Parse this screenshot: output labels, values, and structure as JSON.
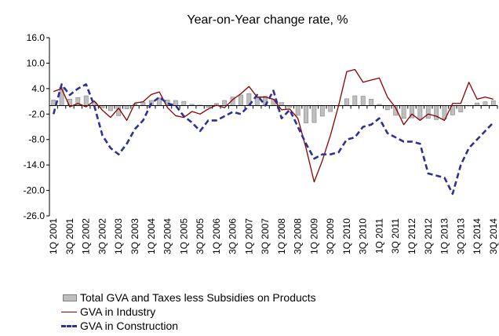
{
  "chart_data": {
    "type": "bar+line",
    "title": "Year-on-Year change rate, %",
    "xlabel": "",
    "ylabel": "",
    "ylim": [
      -26,
      16
    ],
    "yticks": [
      "16.0",
      "10.0",
      "4.0",
      "-2.0",
      "-8.0",
      "-14.0",
      "-20.0",
      "-26.0"
    ],
    "x_tick_labels": [
      "1Q 2001",
      "3Q 2001",
      "1Q 2002",
      "3Q 2002",
      "1Q 2003",
      "3Q 2003",
      "1Q 2004",
      "3Q 2004",
      "1Q 2005",
      "3Q 2005",
      "1Q 2006",
      "3Q 2006",
      "1Q 2007",
      "3Q 2007",
      "1Q 2008",
      "3Q 2008",
      "1Q 2009",
      "3Q 2009",
      "1Q 2010",
      "3Q 2010",
      "1Q 2011",
      "3Q 2011",
      "1Q 2012",
      "3Q 2012",
      "1Q 2013",
      "3Q 2013",
      "1Q 2014",
      "3Q 2014"
    ],
    "categories": [
      "1Q 2001",
      "2Q 2001",
      "3Q 2001",
      "4Q 2001",
      "1Q 2002",
      "2Q 2002",
      "3Q 2002",
      "4Q 2002",
      "1Q 2003",
      "2Q 2003",
      "3Q 2003",
      "4Q 2003",
      "1Q 2004",
      "2Q 2004",
      "3Q 2004",
      "4Q 2004",
      "1Q 2005",
      "2Q 2005",
      "3Q 2005",
      "4Q 2005",
      "1Q 2006",
      "2Q 2006",
      "3Q 2006",
      "4Q 2006",
      "1Q 2007",
      "2Q 2007",
      "3Q 2007",
      "4Q 2007",
      "1Q 2008",
      "2Q 2008",
      "3Q 2008",
      "4Q 2008",
      "1Q 2009",
      "2Q 2009",
      "3Q 2009",
      "4Q 2009",
      "1Q 2010",
      "2Q 2010",
      "3Q 2010",
      "4Q 2010",
      "1Q 2011",
      "2Q 2011",
      "3Q 2011",
      "4Q 2011",
      "1Q 2012",
      "2Q 2012",
      "3Q 2012",
      "4Q 2012",
      "1Q 2013",
      "2Q 2013",
      "3Q 2013",
      "4Q 2013",
      "1Q 2014",
      "2Q 2014",
      "3Q 2014"
    ],
    "series": [
      {
        "name": "Total GVA and Taxes less Subsidies on Products",
        "kind": "bar",
        "color": "#bfbfbf",
        "values": [
          1.3,
          4.3,
          1.5,
          1.9,
          2.3,
          0.8,
          -0.5,
          -1.2,
          -2.4,
          -0.8,
          0.4,
          0.8,
          1.2,
          1.8,
          1.3,
          1.2,
          1.0,
          0.3,
          0.1,
          -0.4,
          0.5,
          1.2,
          2.0,
          2.5,
          2.8,
          1.8,
          2.2,
          1.5,
          0.7,
          -0.4,
          -2.3,
          -4.1,
          -4.0,
          -2.5,
          -1.4,
          0.0,
          1.6,
          2.3,
          2.2,
          1.5,
          0.3,
          -1.0,
          -2.3,
          -3.0,
          -2.9,
          -3.2,
          -3.0,
          -3.3,
          -3.2,
          -2.2,
          -1.5,
          0.0,
          0.6,
          0.9,
          1.1
        ]
      },
      {
        "name": "GVA in Industry",
        "kind": "line",
        "color": "#8b0000",
        "values": [
          3.3,
          4.0,
          -0.3,
          0.5,
          -0.3,
          1.1,
          -1.1,
          -2.8,
          -0.6,
          -3.5,
          0.6,
          0.9,
          2.6,
          3.2,
          -0.5,
          -2.4,
          -2.8,
          -1.4,
          -2.0,
          -0.8,
          0.1,
          -0.5,
          1.4,
          2.8,
          4.5,
          2.0,
          2.0,
          1.5,
          -1.0,
          -0.8,
          -3.0,
          -10.0,
          -18.0,
          -13.0,
          -7.0,
          0.0,
          8.0,
          8.5,
          5.5,
          6.0,
          6.5,
          2.0,
          -0.5,
          -4.5,
          -2.0,
          -3.5,
          -2.0,
          -2.5,
          -3.5,
          0.5,
          0.5,
          5.5,
          1.5,
          2.0,
          1.5
        ]
      },
      {
        "name": "GVA in Construction",
        "kind": "dashed-line",
        "color": "#2e3192",
        "values": [
          -2.0,
          5.0,
          2.5,
          4.0,
          5.0,
          0.0,
          -7.0,
          -10.0,
          -11.5,
          -9.0,
          -5.5,
          -3.5,
          0.5,
          2.0,
          0.5,
          0.0,
          -2.5,
          -4.0,
          -6.0,
          -3.5,
          -3.5,
          -2.5,
          -1.5,
          -2.0,
          0.0,
          2.5,
          0.0,
          3.5,
          -3.0,
          -1.0,
          -5.0,
          -9.0,
          -12.5,
          -11.5,
          -11.5,
          -11.0,
          -8.0,
          -7.5,
          -5.0,
          -4.5,
          -3.0,
          -6.5,
          -7.5,
          -8.5,
          -8.5,
          -9.0,
          -16.0,
          -16.5,
          -17.0,
          -20.8,
          -14.0,
          -10.0,
          -8.0,
          -6.0,
          -4.0
        ]
      }
    ],
    "legend": {
      "placement": "bottom-left",
      "entries": [
        "Total GVA and Taxes less Subsidies on Products",
        "GVA in Industry",
        "GVA in Construction"
      ]
    },
    "grid": false
  }
}
